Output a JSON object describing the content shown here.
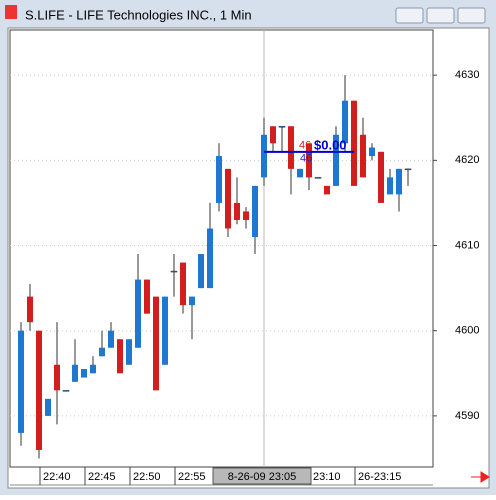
{
  "window_title": "S.LIFE - LIFE Technologies INC., 1 Min",
  "chart_data": {
    "type": "candlestick",
    "categories": [
      null,
      null,
      "22:40",
      null,
      null,
      null,
      null,
      "22:45",
      null,
      null,
      null,
      null,
      "22:50",
      null,
      null,
      null,
      null,
      "22:55",
      null,
      null,
      null,
      null,
      null,
      null,
      null,
      null,
      null,
      null,
      null,
      null,
      null,
      null,
      "23:10",
      null,
      null,
      null,
      null,
      "26-23:15",
      null,
      null,
      null,
      null,
      null,
      null
    ],
    "open": [
      4588,
      4604,
      4600,
      4590,
      4596,
      4593,
      4594,
      4594.5,
      4595,
      4597,
      4598,
      4599,
      4596,
      4598,
      4606,
      4604,
      4596,
      4607,
      4608,
      4603,
      4605,
      4605,
      4615,
      4619,
      4615,
      4614,
      4611,
      4618,
      4624,
      4624,
      4624,
      4618,
      4622,
      4618,
      4617,
      4617,
      4622,
      4627,
      4623,
      4620.5,
      4621,
      4616,
      4616,
      4619
    ],
    "high": [
      4601,
      4605.5,
      4600,
      4592,
      4601,
      4593,
      4599,
      4595.5,
      4597,
      4600,
      4601,
      4599,
      4599,
      4609,
      4606,
      4604,
      4604,
      4609,
      4608,
      4604,
      4609,
      4615,
      4622,
      4619,
      4618,
      4614.5,
      4617,
      4625,
      4624,
      4624,
      4624,
      4619,
      4622,
      4618,
      4617,
      4624,
      4630,
      4627,
      4625,
      4622,
      4621,
      4619,
      4619,
      4619
    ],
    "low": [
      4586.5,
      4600,
      4585,
      4590,
      4589,
      4593,
      4594,
      4594.5,
      4595,
      4597,
      4598,
      4595,
      4596,
      4598,
      4602,
      4593,
      4596,
      4604,
      4602,
      4599,
      4605,
      4605,
      4614,
      4611,
      4612.5,
      4612,
      4609,
      4617,
      4621,
      4621,
      4616,
      4618,
      4616.5,
      4618,
      4616,
      4617,
      4621,
      4617,
      4618,
      4620,
      4615,
      4616,
      4614,
      4617
    ],
    "close": [
      4600,
      4601,
      4586,
      4592,
      4593,
      4593,
      4596,
      4595.5,
      4596,
      4598,
      4600,
      4595,
      4599,
      4606,
      4602,
      4593,
      4604,
      4607,
      4603,
      4604,
      4609,
      4612,
      4620.5,
      4612,
      4613,
      4613,
      4617,
      4623,
      4622,
      4624,
      4619,
      4619,
      4618,
      4618,
      4616,
      4623,
      4627,
      4617,
      4618,
      4621.5,
      4615,
      4618,
      4619,
      4619
    ],
    "up_color": "#1e78d2",
    "down_color": "#d21e1e",
    "ylim": [
      4584,
      4635.3
    ],
    "yticks": [
      4590,
      4600,
      4610,
      4620,
      4630
    ],
    "grid": true,
    "cursor_label": "8-26-09 23:05",
    "measure": {
      "value": 4621,
      "start_label": "46",
      "end_label": "46",
      "change": "$0.00"
    }
  }
}
